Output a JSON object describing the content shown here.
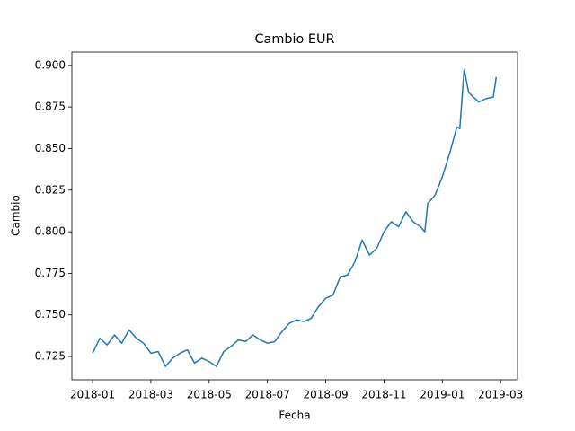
{
  "chart_data": {
    "type": "line",
    "title": "Cambio EUR",
    "xlabel": "Fecha",
    "ylabel": "Cambio",
    "x": [
      0,
      0.25,
      0.5,
      0.75,
      1,
      1.25,
      1.5,
      1.75,
      2,
      2.25,
      2.5,
      2.75,
      3,
      3.25,
      3.5,
      3.75,
      4,
      4.25,
      4.5,
      4.75,
      5,
      5.25,
      5.5,
      5.75,
      6,
      6.25,
      6.5,
      6.75,
      7,
      7.25,
      7.5,
      7.75,
      8,
      8.25,
      8.5,
      8.75,
      9,
      9.25,
      9.5,
      9.75,
      10,
      10.25,
      10.5,
      10.75,
      11,
      11.25,
      11.4,
      11.5,
      11.75,
      12,
      12.25,
      12.5,
      12.6,
      12.75,
      12.9,
      13,
      13.25,
      13.5,
      13.75,
      13.85
    ],
    "series": [
      {
        "name": "EUR",
        "color": "#1f77b4",
        "values": [
          0.727,
          0.736,
          0.732,
          0.738,
          0.733,
          0.741,
          0.736,
          0.733,
          0.727,
          0.728,
          0.719,
          0.724,
          0.727,
          0.729,
          0.721,
          0.724,
          0.722,
          0.719,
          0.728,
          0.731,
          0.735,
          0.734,
          0.738,
          0.735,
          0.733,
          0.734,
          0.74,
          0.745,
          0.747,
          0.746,
          0.748,
          0.755,
          0.76,
          0.762,
          0.773,
          0.774,
          0.782,
          0.795,
          0.786,
          0.79,
          0.8,
          0.806,
          0.803,
          0.812,
          0.806,
          0.803,
          0.8,
          0.817,
          0.822,
          0.833,
          0.847,
          0.863,
          0.862,
          0.898,
          0.884,
          0.882,
          0.878,
          0.88,
          0.881,
          0.893
        ]
      }
    ],
    "xlim": [
      -0.71,
      14.58
    ],
    "xticks": [
      {
        "value": 0,
        "label": "2018-01"
      },
      {
        "value": 2,
        "label": "2018-03"
      },
      {
        "value": 4,
        "label": "2018-05"
      },
      {
        "value": 6,
        "label": "2018-07"
      },
      {
        "value": 8,
        "label": "2018-09"
      },
      {
        "value": 10,
        "label": "2018-11"
      },
      {
        "value": 12,
        "label": "2019-01"
      },
      {
        "value": 14,
        "label": "2019-03"
      }
    ],
    "ylim": [
      0.711,
      0.908
    ],
    "yticks": [
      0.725,
      {
        "value": 0.75,
        "label": "0.750"
      },
      0.775,
      {
        "value": 0.8,
        "label": "0.800"
      },
      0.825,
      {
        "value": 0.85,
        "label": "0.850"
      },
      0.875,
      {
        "value": 0.9,
        "label": "0.900"
      }
    ]
  }
}
